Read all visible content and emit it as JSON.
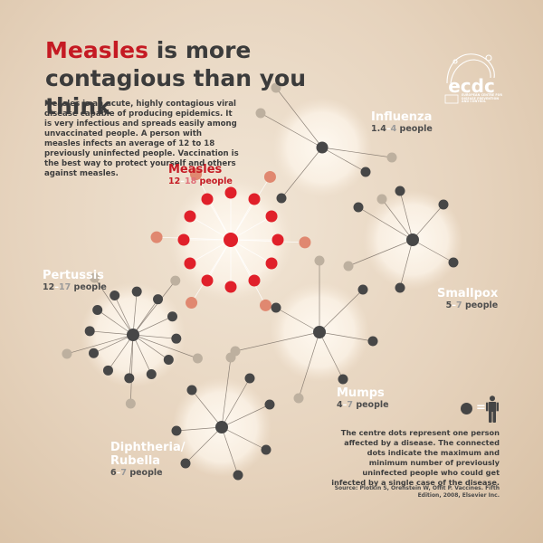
{
  "title": {
    "highlight": "Measles",
    "rest": " is more contagious than you think"
  },
  "intro": "Measles is an acute, highly contagious viral disease capable of producing epidemics. It is very infectious and spreads easily among unvaccinated people. A person with measles infects an average of 12 to 18 previously uninfected people. Vaccination is the best way to protect yourself and others against measles.",
  "diseases": [
    {
      "key": "measles",
      "name": "Measles",
      "min": "12",
      "max": "18",
      "unit": "people",
      "min_count": 12,
      "max_count": 18,
      "accent": "#e0202a",
      "outer_accent": "#e08870",
      "center_color": "#e0202a"
    },
    {
      "key": "influenza",
      "name": "Influenza",
      "min": "1.4",
      "max": "4",
      "unit": "people",
      "min_count": 1.4,
      "max_count": 4
    },
    {
      "key": "pertussis",
      "name": "Pertussis",
      "min": "12",
      "max": "17",
      "unit": "people",
      "min_count": 12,
      "max_count": 17
    },
    {
      "key": "smallpox",
      "name": "Smallpox",
      "min": "5",
      "max": "7",
      "unit": "people",
      "min_count": 5,
      "max_count": 7
    },
    {
      "key": "mumps",
      "name": "Mumps",
      "min": "4",
      "max": "7",
      "unit": "people",
      "min_count": 4,
      "max_count": 7
    },
    {
      "key": "diphtheria",
      "name_line1": "Diphtheria/",
      "name_line2": "Rubella",
      "min": "6",
      "max": "7",
      "unit": "people",
      "min_count": 6,
      "max_count": 7
    }
  ],
  "legend": {
    "equals": "=",
    "person_icon": "person-icon",
    "text": "The centre dots represent one person affected by a disease. The connected dots indicate the maximum and minimum number of previously uninfected people who could get infected by a single case of the disease.",
    "source": "Source: Plotkin S, Orenstein W, Offit P. Vaccines. Fifth Edition, 2008, Elsevier Inc."
  },
  "logo": {
    "text": "ecdc",
    "subtitle": "EUROPEAN CENTRE FOR DISEASE PREVENTION AND CONTROL"
  },
  "colors": {
    "dark_dot": "#474747",
    "light_dot": "#bdb09f",
    "measles_red": "#e0202a",
    "measles_salmon": "#e08870",
    "halo": "#fffaf2"
  }
}
